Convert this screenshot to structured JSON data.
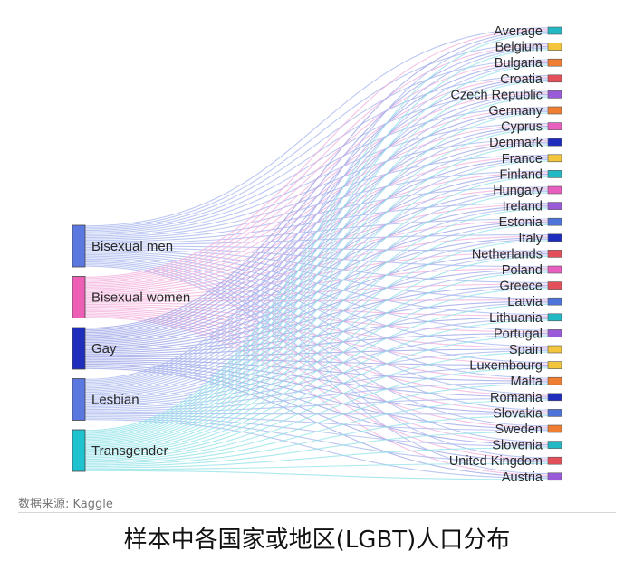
{
  "chart_data": {
    "type": "sankey",
    "sources": [
      {
        "name": "Bisexual men",
        "color": "#5a78e0"
      },
      {
        "name": "Bisexual women",
        "color": "#ec5fb4"
      },
      {
        "name": "Gay",
        "color": "#1f2dbd"
      },
      {
        "name": "Lesbian",
        "color": "#5a78e0"
      },
      {
        "name": "Transgender",
        "color": "#1fc3cf"
      }
    ],
    "targets": [
      {
        "name": "Average",
        "color": "#22b8c4"
      },
      {
        "name": "Belgium",
        "color": "#f2c53d"
      },
      {
        "name": "Bulgaria",
        "color": "#ef7d32"
      },
      {
        "name": "Croatia",
        "color": "#e4505a"
      },
      {
        "name": "Czech Republic",
        "color": "#9a5bd9"
      },
      {
        "name": "Germany",
        "color": "#ef7d32"
      },
      {
        "name": "Cyprus",
        "color": "#e85fc0"
      },
      {
        "name": "Denmark",
        "color": "#1f2dbd"
      },
      {
        "name": "France",
        "color": "#f2c53d"
      },
      {
        "name": "Finland",
        "color": "#22b8c4"
      },
      {
        "name": "Hungary",
        "color": "#e85fc0"
      },
      {
        "name": "Ireland",
        "color": "#9a5bd9"
      },
      {
        "name": "Estonia",
        "color": "#4f74d9"
      },
      {
        "name": "Italy",
        "color": "#1f2dbd"
      },
      {
        "name": "Netherlands",
        "color": "#e4505a"
      },
      {
        "name": "Poland",
        "color": "#e85fc0"
      },
      {
        "name": "Greece",
        "color": "#e4505a"
      },
      {
        "name": "Latvia",
        "color": "#4f74d9"
      },
      {
        "name": "Lithuania",
        "color": "#22b8c4"
      },
      {
        "name": "Portugal",
        "color": "#9a5bd9"
      },
      {
        "name": "Spain",
        "color": "#f2c53d"
      },
      {
        "name": "Luxembourg",
        "color": "#f2c53d"
      },
      {
        "name": "Malta",
        "color": "#ef7d32"
      },
      {
        "name": "Romania",
        "color": "#1f2dbd"
      },
      {
        "name": "Slovakia",
        "color": "#4f74d9"
      },
      {
        "name": "Sweden",
        "color": "#ef7d32"
      },
      {
        "name": "Slovenia",
        "color": "#22b8c4"
      },
      {
        "name": "United Kingdom",
        "color": "#e4505a"
      },
      {
        "name": "Austria",
        "color": "#9a5bd9"
      }
    ],
    "link_colors": [
      "#a7b5ee",
      "#f3aedb",
      "#9aa1e6",
      "#a7b5ee",
      "#8fe1e7"
    ]
  },
  "source_note": "数据来源: Kaggle",
  "caption": "样本中各国家或地区(LGBT)人口分布"
}
